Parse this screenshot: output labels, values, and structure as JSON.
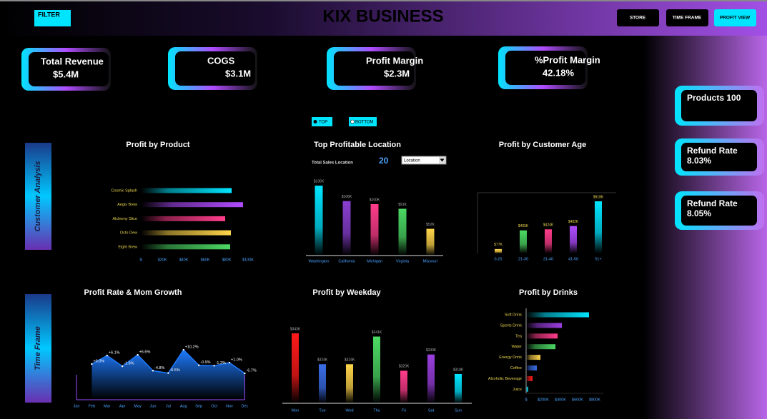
{
  "header": {
    "filter": "FILTER",
    "title": "KIX BUSINESS",
    "buttons": [
      "STORE",
      "TIME FRAME",
      "PROFIT VIEW"
    ]
  },
  "kpis": [
    {
      "label": "Total Revenue",
      "value": "$5.4M"
    },
    {
      "label": "COGS",
      "value": "$3.1M"
    },
    {
      "label": "Profit Margin",
      "value": "$2.3M"
    },
    {
      "label": "%Profit Margin",
      "value": "42.18%"
    }
  ],
  "side_cards": [
    {
      "label": "Products 100"
    },
    {
      "label": "Refund  Rate",
      "value": "8.03%"
    },
    {
      "label": "Refund  Rate",
      "value": "8.05%"
    }
  ],
  "section_labels": [
    "Customer Analysis",
    "Time Frame"
  ],
  "toggles": [
    "TOP",
    "BOTTOM"
  ],
  "location_filter": {
    "label": "Total Sales Location",
    "value": 20,
    "dropdown": "Location"
  },
  "chart_data": [
    {
      "type": "hbar",
      "title": "Profit by Product",
      "categories": [
        "Cosmic Splash",
        "Aegis Brew",
        "Alchemy Slice",
        "Octo Dew",
        "Eight Brew"
      ],
      "values": [
        84700,
        95300,
        78700,
        84000,
        83300
      ],
      "colors": [
        "#00e5ff",
        "#b04cff",
        "#ff3d8b",
        "#ffd54a",
        "#4cd964"
      ],
      "xlim": [
        0,
        100000
      ],
      "xticks": [
        {
          "value": 0,
          "label": "$"
        },
        {
          "value": 20000,
          "label": "$20K"
        },
        {
          "value": 40000,
          "label": "$40K"
        },
        {
          "value": 60000,
          "label": "$60K"
        },
        {
          "value": 80000,
          "label": "$80K"
        },
        {
          "value": 100000,
          "label": "$100K"
        }
      ]
    },
    {
      "type": "bar",
      "title": "Top Profitable Location",
      "categories": [
        "Washington",
        "California",
        "Michigan",
        "Virginia",
        "Missouri"
      ],
      "values": [
        136000,
        106000,
        100000,
        91000,
        52000
      ],
      "value_labels": [
        "$136K",
        "$106K",
        "$100K",
        "$91K",
        "$52K"
      ],
      "colors": [
        "#00e5ff",
        "#8a3fd1",
        "#ff3d8b",
        "#4cd964",
        "#ffd54a"
      ],
      "ylim": [
        0,
        150000
      ]
    },
    {
      "type": "bar",
      "title": "Profit by Customer Age",
      "categories": [
        "0-20",
        "21-30",
        "31-40",
        "41-50",
        "51+"
      ],
      "values": [
        77000,
        405000,
        424000,
        482000,
        918000
      ],
      "value_labels": [
        "$77K",
        "$405K",
        "$424K",
        "$482K",
        "$918K"
      ],
      "colors": [
        "#ffd54a",
        "#4cd964",
        "#ff3d8b",
        "#b04cff",
        "#00e5ff"
      ],
      "ylim": [
        0,
        1000000
      ]
    },
    {
      "type": "area",
      "title": "Profit Rate & Mom Growth",
      "categories": [
        "Jan",
        "Feb",
        "Mar",
        "Apr",
        "May",
        "Jun",
        "Jul",
        "Aug",
        "Sep",
        "Oct",
        "Nov",
        "Dec"
      ],
      "values": [
        null,
        0.0,
        6.1,
        -1.6,
        6.6,
        -4.8,
        -6.5,
        10.2,
        -0.9,
        -1.2,
        1.0,
        -6.7
      ],
      "value_labels": [
        null,
        "+0.0%",
        "+6.1%",
        "-1.6%",
        "+6.6%",
        "-4.8%",
        "-6.5%",
        "+10.2%",
        "-0.9%",
        "-1.2%",
        "+1.0%",
        "-6.7%"
      ],
      "color": "#1e7bff",
      "ylim": [
        -10,
        12
      ]
    },
    {
      "type": "bar",
      "title": "Profit by Weekday",
      "categories": [
        "Mon",
        "Tue",
        "Wed",
        "Thu",
        "Fri",
        "Sat",
        "Sun"
      ],
      "values": [
        343000,
        324000,
        324000,
        341000,
        320000,
        330000,
        318000
      ],
      "value_labels": [
        "$343K",
        "$324K",
        "$324K",
        "$341K",
        "$320K",
        "$330K",
        "$318K"
      ],
      "colors": [
        "#ff1a1a",
        "#3a6ee8",
        "#ffd54a",
        "#4cd964",
        "#ff3d8b",
        "#9b3fe0",
        "#00e5ff"
      ],
      "ylim": [
        300000,
        350000
      ]
    },
    {
      "type": "hbar",
      "title": "Profit by Drinks",
      "categories": [
        "Soft Drink",
        "Sports Drink",
        "Tea",
        "Water",
        "Energy Drink",
        "Coffee",
        "Alcoholic Beverage",
        "Juice"
      ],
      "values": [
        733000,
        417000,
        367000,
        342000,
        167000,
        125000,
        75000,
        25000
      ],
      "colors": [
        "#00e5ff",
        "#9b3fe0",
        "#ff3d8b",
        "#4cd964",
        "#ffd54a",
        "#3a6ee8",
        "#ff1a1a",
        "#00e5ff"
      ],
      "xlim": [
        0,
        900000
      ],
      "xticks": [
        {
          "value": 0,
          "label": "$"
        },
        {
          "value": 200000,
          "label": "$200K"
        },
        {
          "value": 400000,
          "label": "$400K"
        },
        {
          "value": 600000,
          "label": "$600K"
        },
        {
          "value": 800000,
          "label": "$800K"
        }
      ]
    }
  ]
}
